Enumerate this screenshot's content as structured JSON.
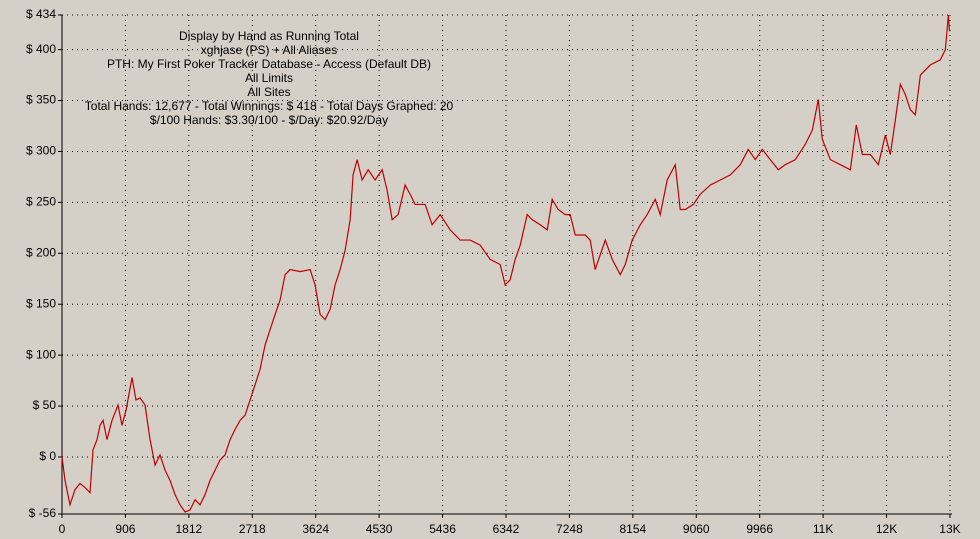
{
  "chart_data": {
    "type": "line",
    "annotations": [
      "Display by Hand as Running Total",
      "xghjase (PS) + All Aliases",
      "PTH: My First Poker Tracker Database - Access (Default DB)",
      "All Limits",
      "All Sites",
      "Total Hands: 12,677 - Total Winnings: $ 418 - Total Days Graphed: 20",
      "$/100 Hands: $3.30/100 - $/Day: $20.92/Day"
    ],
    "color": "#c00000",
    "grid": true,
    "xlim": [
      0,
      12713
    ],
    "ylim": [
      -56,
      434
    ],
    "xticks": [
      0,
      906,
      1812,
      2718,
      3624,
      4530,
      5436,
      6342,
      7248,
      8154,
      9060,
      9966,
      {
        "value": 10872,
        "label": "11K"
      },
      {
        "value": 11778,
        "label": "12K"
      },
      {
        "value": 12684,
        "label": "13K"
      }
    ],
    "yticks": [
      {
        "value": -56,
        "label": "$ -56"
      },
      {
        "value": 0,
        "label": "$ 0"
      },
      {
        "value": 50,
        "label": "$ 50"
      },
      {
        "value": 100,
        "label": "$ 100"
      },
      {
        "value": 150,
        "label": "$ 150"
      },
      {
        "value": 200,
        "label": "$ 200"
      },
      {
        "value": 250,
        "label": "$ 250"
      },
      {
        "value": 300,
        "label": "$ 300"
      },
      {
        "value": 350,
        "label": "$ 350"
      },
      {
        "value": 400,
        "label": "$ 400"
      },
      {
        "value": 434,
        "label": "$ 434"
      }
    ],
    "x": [
      0,
      43,
      114,
      186,
      257,
      329,
      400,
      443,
      500,
      543,
      586,
      643,
      715,
      800,
      857,
      915,
      1000,
      1057,
      1115,
      1186,
      1258,
      1329,
      1400,
      1472,
      1543,
      1615,
      1686,
      1758,
      1829,
      1901,
      1972,
      2043,
      2115,
      2186,
      2258,
      2329,
      2401,
      2472,
      2544,
      2615,
      2687,
      2758,
      2829,
      2901,
      2972,
      3044,
      3115,
      3187,
      3258,
      3401,
      3544,
      3615,
      3687,
      3758,
      3830,
      3901,
      3973,
      4044,
      4116,
      4158,
      4216,
      4287,
      4373,
      4473,
      4573,
      4644,
      4716,
      4801,
      4901,
      4973,
      5044,
      5187,
      5287,
      5402,
      5545,
      5687,
      5830,
      5973,
      6116,
      6259,
      6330,
      6402,
      6473,
      6545,
      6645,
      6716,
      6831,
      6931,
      7002,
      7088,
      7188,
      7259,
      7331,
      7474,
      7545,
      7616,
      7760,
      7860,
      7974,
      8045,
      8145,
      8260,
      8359,
      8474,
      8545,
      8645,
      8760,
      8831,
      8903,
      9017,
      9117,
      9260,
      9403,
      9546,
      9689,
      9803,
      9903,
      10003,
      10117,
      10232,
      10332,
      10475,
      10617,
      10718,
      10803,
      10860,
      10975,
      11118,
      11261,
      11346,
      11432,
      11546,
      11661,
      11761,
      11832,
      11904,
      11975,
      12046,
      12118,
      12189,
      12261,
      12404,
      12547,
      12618,
      12661,
      12677
    ],
    "values": [
      0,
      -23,
      -47,
      -32,
      -26,
      -30,
      -35,
      7,
      17,
      31,
      36,
      17,
      36,
      51,
      31,
      46,
      78,
      56,
      58,
      51,
      17,
      -8,
      2,
      -13,
      -23,
      -37,
      -47,
      -54,
      -52,
      -42,
      -47,
      -37,
      -23,
      -13,
      -3,
      2,
      17,
      27,
      36,
      41,
      56,
      71,
      86,
      110,
      125,
      140,
      154,
      179,
      184,
      182,
      184,
      169,
      140,
      135,
      145,
      169,
      184,
      203,
      233,
      277,
      292,
      272,
      282,
      272,
      282,
      262,
      233,
      238,
      267,
      258,
      248,
      248,
      228,
      238,
      223,
      213,
      213,
      208,
      194,
      189,
      169,
      174,
      194,
      208,
      238,
      233,
      228,
      223,
      253,
      243,
      238,
      238,
      218,
      218,
      213,
      184,
      213,
      194,
      179,
      189,
      213,
      228,
      238,
      253,
      238,
      272,
      287,
      243,
      243,
      248,
      258,
      267,
      272,
      277,
      287,
      302,
      292,
      302,
      292,
      282,
      287,
      292,
      307,
      321,
      351,
      312,
      292,
      287,
      282,
      326,
      297,
      297,
      287,
      316,
      297,
      331,
      366,
      356,
      341,
      336,
      375,
      385,
      390,
      400,
      434,
      418
    ]
  }
}
